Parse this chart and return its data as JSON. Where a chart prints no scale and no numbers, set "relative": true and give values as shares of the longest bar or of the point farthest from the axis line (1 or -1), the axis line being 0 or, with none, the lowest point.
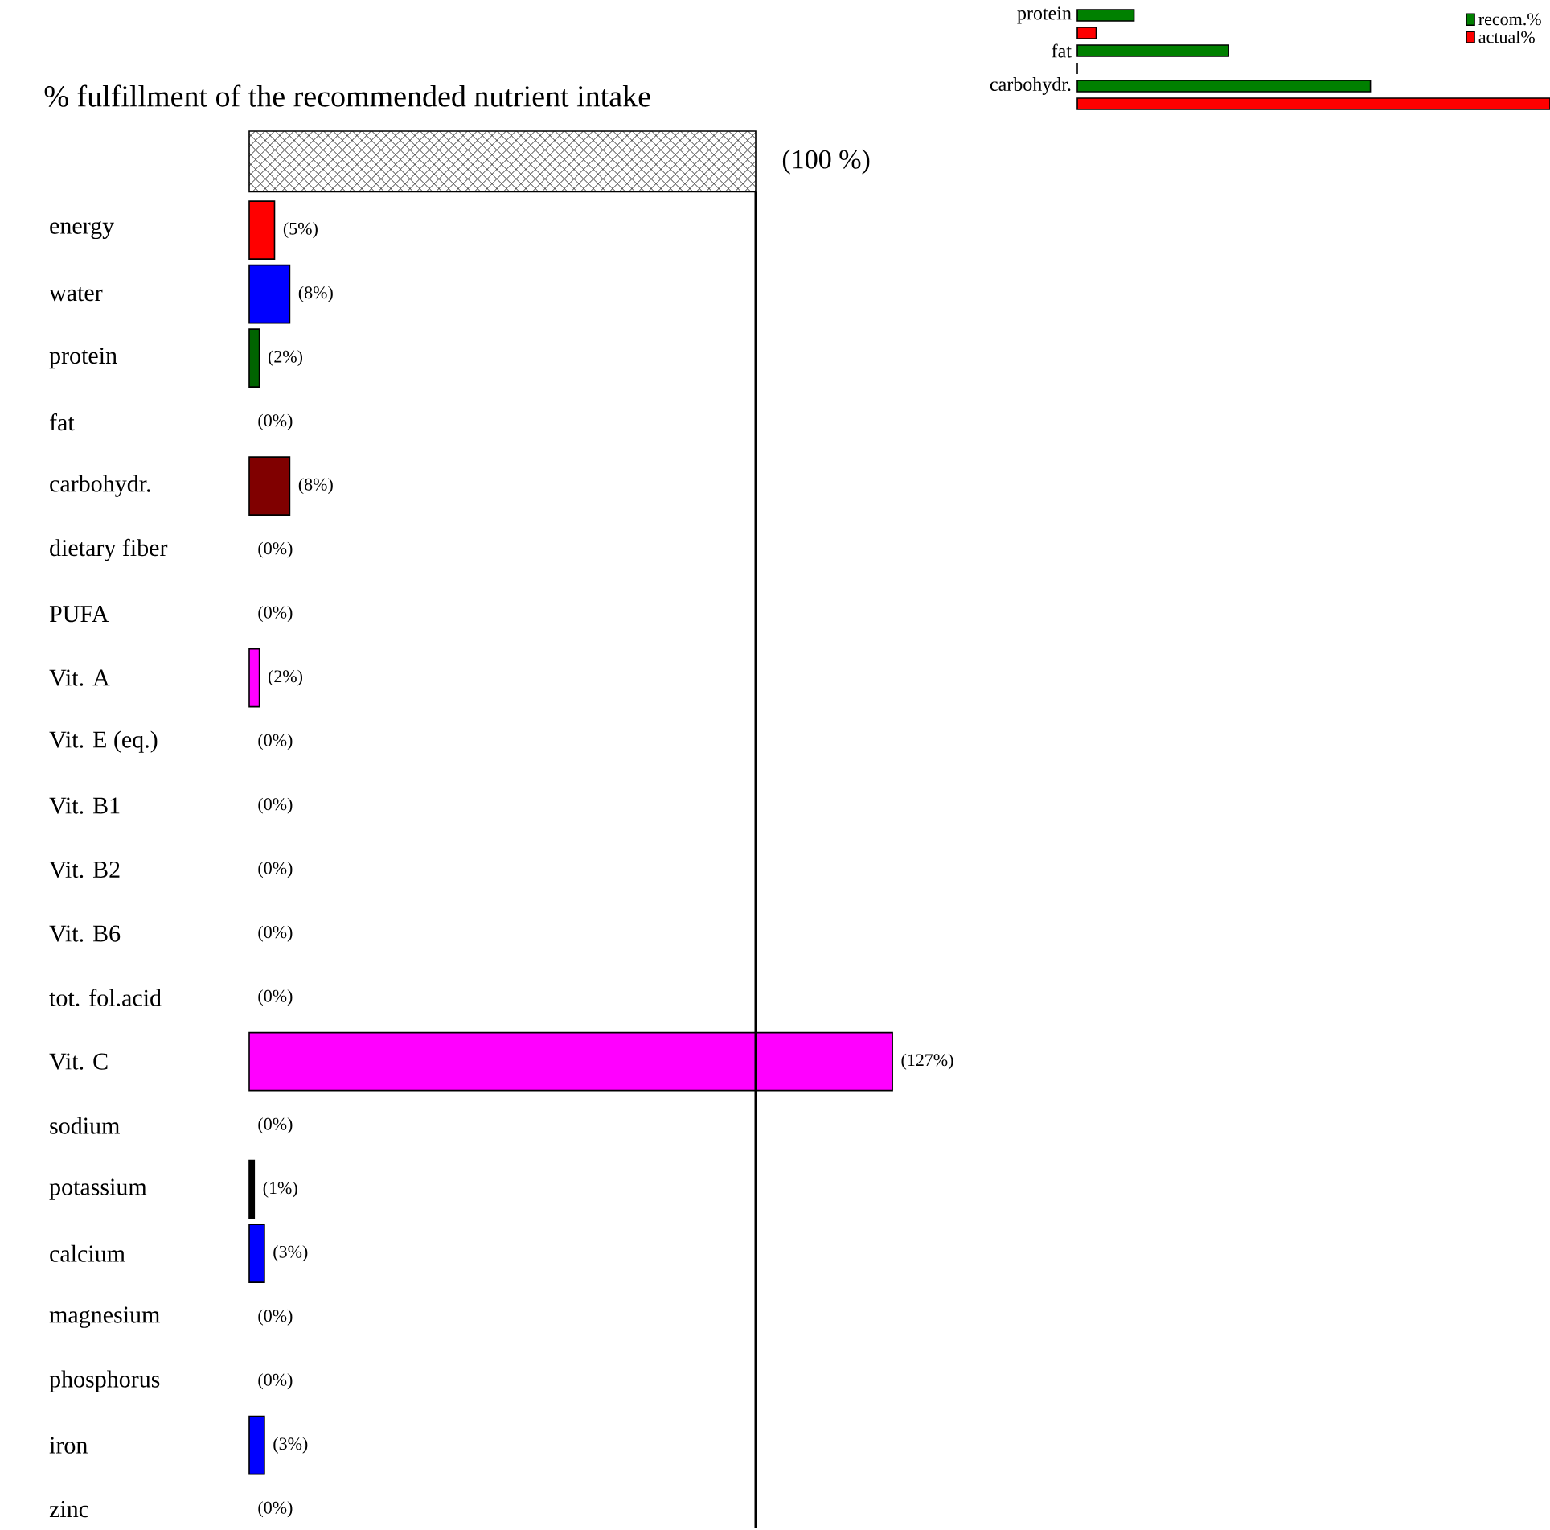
{
  "chart_data": [
    {
      "type": "bar",
      "orientation": "horizontal",
      "title": "% fulfillment of the recommended nutrient intake",
      "categories": [
        "energy",
        "water",
        "protein",
        "fat",
        "carbohydr.",
        "dietary fiber",
        "PUFA",
        "Vit. A",
        "Vit. E (eq.)",
        "Vit. B1",
        "Vit. B2",
        "Vit. B6",
        "tot. fol.acid",
        "Vit. C",
        "sodium",
        "potassium",
        "calcium",
        "magnesium",
        "phosphorus",
        "iron",
        "zinc"
      ],
      "values": [
        5,
        8,
        2,
        0,
        8,
        0,
        0,
        2,
        0,
        0,
        0,
        0,
        0,
        127,
        0,
        1,
        3,
        0,
        0,
        3,
        0
      ],
      "colors": [
        "#ff0000",
        "#0000ff",
        "#006400",
        null,
        "#800000",
        null,
        null,
        "#ff00ff",
        null,
        null,
        null,
        null,
        null,
        "#ff00ff",
        null,
        "#000000",
        "#0000ff",
        null,
        null,
        "#0000ff",
        null
      ],
      "value_labels": [
        "(5%)",
        "(8%)",
        "(2%)",
        "(0%)",
        "(8%)",
        "(0%)",
        "(0%)",
        "(2%)",
        "(0%)",
        "(0%)",
        "(0%)",
        "(0%)",
        "(0%)",
        "(127%)",
        "(0%)",
        "(1%)",
        "(3%)",
        "(0%)",
        "(0%)",
        "(3%)",
        "(0%)"
      ],
      "tick_labels": "y",
      "ref_lines": [
        {
          "axis": "x",
          "value": 100,
          "label": "(100 %)"
        }
      ]
    },
    {
      "type": "bar",
      "orientation": "horizontal",
      "relative": true,
      "legend": "top right",
      "categories": [
        "protein",
        "fat",
        "carbohydr."
      ],
      "series": [
        {
          "name": "recom.%",
          "color": "#008000",
          "values": [
            0.12,
            0.32,
            0.62
          ]
        },
        {
          "name": "actual%",
          "color": "#ff0000",
          "values": [
            0.04,
            0,
            1
          ]
        }
      ]
    }
  ]
}
